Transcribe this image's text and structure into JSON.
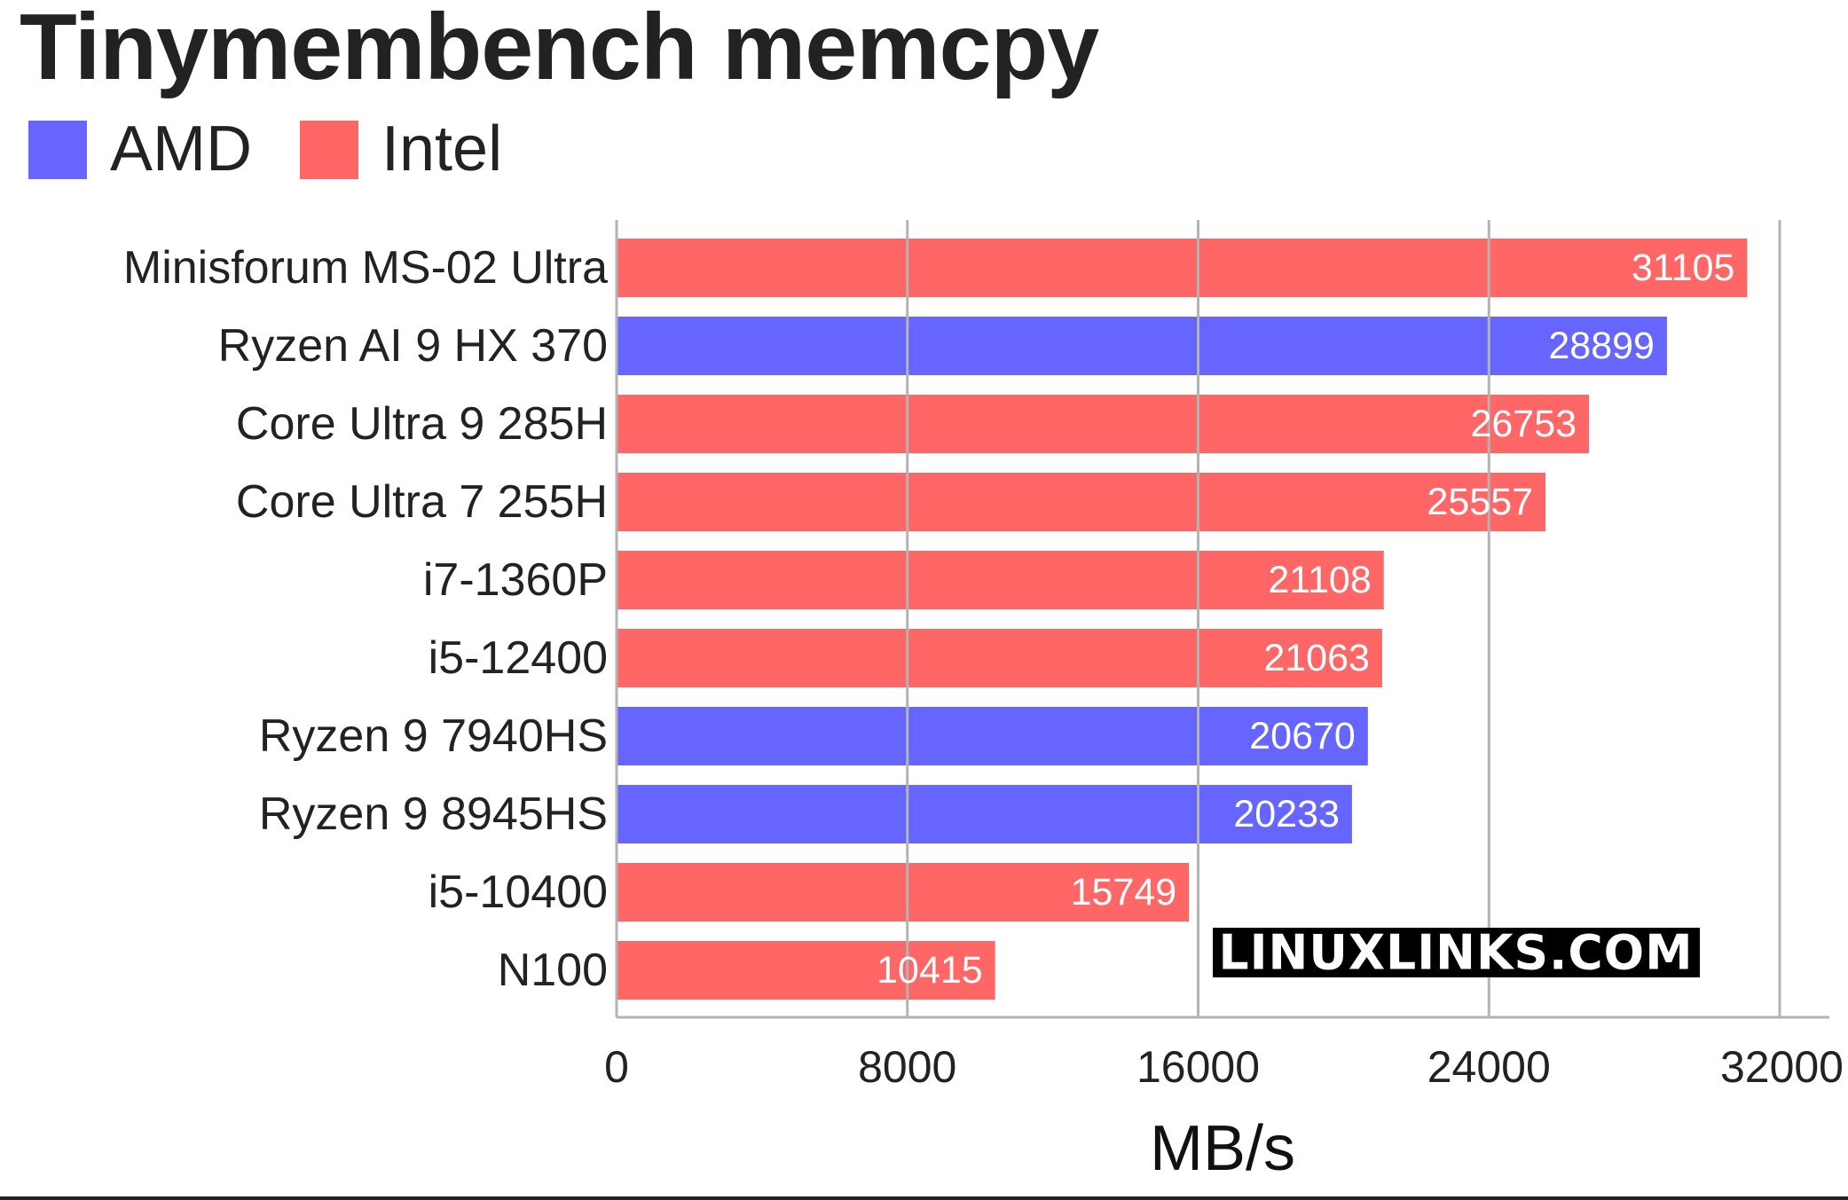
{
  "chart_data": {
    "type": "bar",
    "orientation": "horizontal",
    "title": "Tinymembench memcpy",
    "xlabel": "MB/s",
    "ylabel": "",
    "xlim": [
      0,
      32000
    ],
    "xticks": [
      0,
      8000,
      16000,
      24000,
      32000
    ],
    "xtick_labels": [
      "0",
      "8000",
      "16000",
      "24000",
      "32000"
    ],
    "grid": true,
    "legend_position": "top-left",
    "legend": [
      {
        "name": "AMD",
        "color": "#6666ff"
      },
      {
        "name": "Intel",
        "color": "#ff6666"
      }
    ],
    "categories": [
      "Minisforum MS-02 Ultra",
      "Ryzen AI 9 HX 370",
      "Core Ultra 9 285H",
      "Core Ultra 7 255H",
      "i7-1360P",
      "i5-12400",
      "Ryzen 9 7940HS",
      "Ryzen 9 8945HS",
      "i5-10400",
      "N100"
    ],
    "values": [
      31105,
      28899,
      26753,
      25557,
      21108,
      21063,
      20670,
      20233,
      15749,
      10415
    ],
    "value_labels": [
      "31105",
      "28899",
      "26753",
      "25557",
      "21108",
      "21063",
      "20670",
      "20233",
      "15749",
      "10415"
    ],
    "bar_groups": [
      "Intel",
      "AMD",
      "Intel",
      "Intel",
      "Intel",
      "Intel",
      "AMD",
      "AMD",
      "Intel",
      "Intel"
    ]
  },
  "watermark": "LINUXLINKS.COM",
  "colors": {
    "amd": "#6666ff",
    "intel": "#ff6666",
    "text": "#222222",
    "grid": "#b3b3b3",
    "axis": "#b3b3b3",
    "bar_label": "#ffffff",
    "watermark_bg": "#000000",
    "watermark_text": "#ffffff"
  }
}
